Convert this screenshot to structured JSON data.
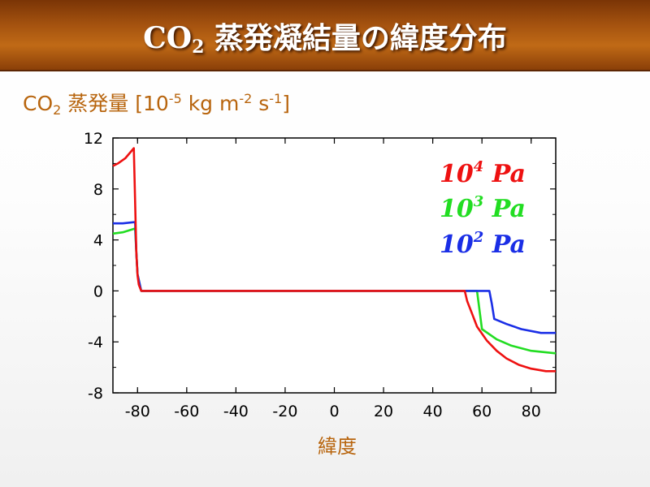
{
  "slide": {
    "title_main": "CO",
    "title_sub": "2",
    "title_rest": " 蒸発凝結量の緯度分布"
  },
  "chart_data": {
    "type": "line",
    "ylabel_parts": {
      "a": "CO",
      "b": "2",
      "c": " 蒸発量 [10",
      "d": "-5",
      "e": " kg m",
      "f": "-2",
      "g": " s",
      "h": "-1",
      "i": "]"
    },
    "xlabel": "緯度",
    "xlim": [
      -90,
      90
    ],
    "ylim": [
      -8,
      12
    ],
    "x_ticks": [
      -80,
      -60,
      -40,
      -20,
      0,
      20,
      40,
      60,
      80
    ],
    "x_tick_labels": [
      "-80",
      "-60",
      "-40",
      "-20",
      "0",
      "20",
      "40",
      "60",
      "80"
    ],
    "y_ticks": [
      12,
      8,
      4,
      0,
      -4,
      -8
    ],
    "y_tick_labels": [
      "12",
      "8",
      "4",
      "0",
      "-4",
      "-8"
    ],
    "grid": false,
    "legend_position": "top-right",
    "series": [
      {
        "name_base": "10",
        "name_exp": "3",
        "name_unit": " Pa",
        "color": "#22dd22",
        "x": [
          -90,
          -86,
          -81,
          -80.5,
          -80,
          -78.5,
          -77,
          50,
          57,
          58,
          60,
          66,
          72,
          80,
          90
        ],
        "y": [
          4.5,
          4.6,
          4.9,
          3.0,
          1.3,
          0,
          0,
          0,
          0,
          0,
          -3.0,
          -3.8,
          -4.3,
          -4.7,
          -4.9
        ]
      },
      {
        "name_base": "10",
        "name_exp": "2",
        "name_unit": " Pa",
        "color": "#1a2ee6",
        "x": [
          -90,
          -86,
          -81,
          -80.5,
          -80,
          -78.5,
          -77,
          50,
          63,
          64,
          65,
          70,
          76,
          84,
          90
        ],
        "y": [
          5.3,
          5.3,
          5.4,
          3.0,
          1.3,
          0,
          0,
          0,
          0,
          -1.0,
          -2.2,
          -2.6,
          -3.0,
          -3.3,
          -3.3
        ]
      },
      {
        "name_base": "10",
        "name_exp": "4",
        "name_unit": " Pa",
        "color": "#ee1111",
        "x": [
          -90,
          -88,
          -85,
          -81.5,
          -81,
          -80.5,
          -80,
          -79.5,
          -78.5,
          -77,
          50,
          53,
          54,
          56,
          58,
          62,
          66,
          70,
          75,
          80,
          86,
          90
        ],
        "y": [
          9.8,
          10.0,
          10.4,
          11.2,
          7.0,
          3.0,
          1.2,
          0.5,
          0,
          0,
          0,
          0,
          -0.8,
          -1.8,
          -2.8,
          -3.9,
          -4.7,
          -5.3,
          -5.8,
          -6.1,
          -6.3,
          -6.3
        ]
      }
    ]
  }
}
